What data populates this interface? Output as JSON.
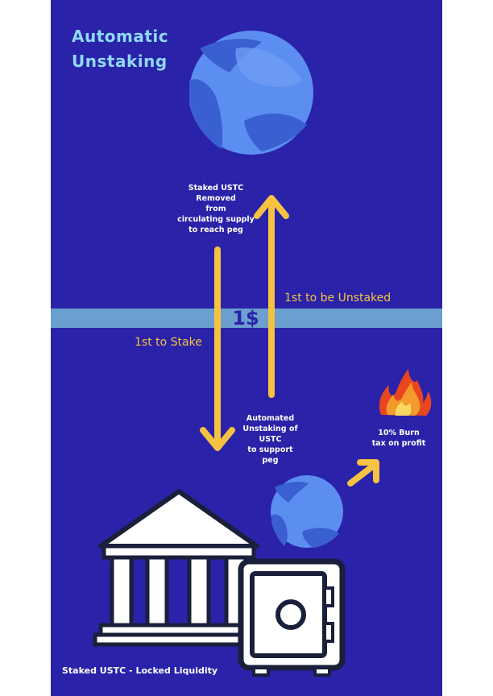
{
  "title": {
    "line1": "Automatic",
    "line2": "Unstaking"
  },
  "staked_removed_text": "Staked USTC\nRemoved\nfrom\ncirculating supply\nto reach peg",
  "first_unstaked_label": "1st to be Unstaked",
  "peg_label": "1$",
  "first_stake_label": "1st to Stake",
  "automated_unstaking_text": "Automated\nUnstaking of\nUSTC\nto support\npeg",
  "burn_tax_text": "10% Burn\ntax on profit",
  "footer_label": "Staked USTC - Locked Liquidity",
  "colors": {
    "background": "#2a22a8",
    "band": "#6b9fd0",
    "arrow": "#f5c242",
    "title": "#8fd8f8",
    "coin": "#5b8ef0",
    "coin_dark": "#3a5fd0",
    "outline": "#1a1f3a"
  },
  "icons": [
    "terra-coin-icon",
    "fire-icon",
    "bank-building-icon",
    "safe-vault-icon"
  ]
}
